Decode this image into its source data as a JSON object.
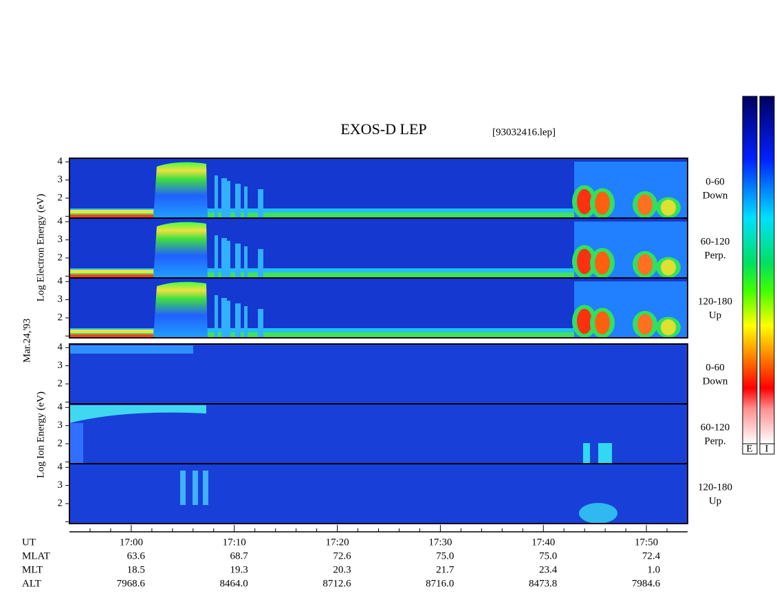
{
  "chart_data": {
    "type": "spectrogram",
    "title": "EXOS-D LEP",
    "file": "[93032416.lep]",
    "date": "Mar.24,'93",
    "group_labels": [
      "Log Electron Energy (eV)",
      "Log Ion Energy (eV)"
    ],
    "panels": [
      {
        "angle": "0-60",
        "direction": "Down"
      },
      {
        "angle": "60-120",
        "direction": "Perp."
      },
      {
        "angle": "120-180",
        "direction": "Up"
      },
      {
        "angle": "0-60",
        "direction": "Down"
      },
      {
        "angle": "60-120",
        "direction": "Perp."
      },
      {
        "angle": "120-180",
        "direction": "Up"
      }
    ],
    "ylim": [
      0.9,
      4.2
    ],
    "yticks": [
      2,
      3,
      4
    ],
    "minor_yticks": [
      1
    ],
    "xlim": [
      "16:54",
      "17:54"
    ],
    "xticks": [
      "17:00",
      "17:10",
      "17:20",
      "17:30",
      "17:40",
      "17:50"
    ],
    "minor_xticks": [
      "16:56",
      "16:58",
      "17:02",
      "17:04",
      "17:06",
      "17:08",
      "17:12",
      "17:14",
      "17:16",
      "17:18",
      "17:22",
      "17:24",
      "17:26",
      "17:28",
      "17:32",
      "17:34",
      "17:36",
      "17:38",
      "17:42",
      "17:44",
      "17:46",
      "17:48",
      "17:52"
    ],
    "table": [
      {
        "name": "UT",
        "values": null
      },
      {
        "name": "MLAT",
        "values": [
          "63.6",
          "68.7",
          "72.6",
          "75.0",
          "75.0",
          "72.4"
        ]
      },
      {
        "name": "MLT",
        "values": [
          "18.5",
          "19.3",
          "20.3",
          "21.7",
          "23.4",
          "1.0"
        ]
      },
      {
        "name": "ALT",
        "values": [
          "7968.6",
          "8464.0",
          "8712.6",
          "8716.0",
          "8473.8",
          "7984.6"
        ]
      }
    ],
    "colorbar_labels": [
      "E",
      "I"
    ]
  }
}
